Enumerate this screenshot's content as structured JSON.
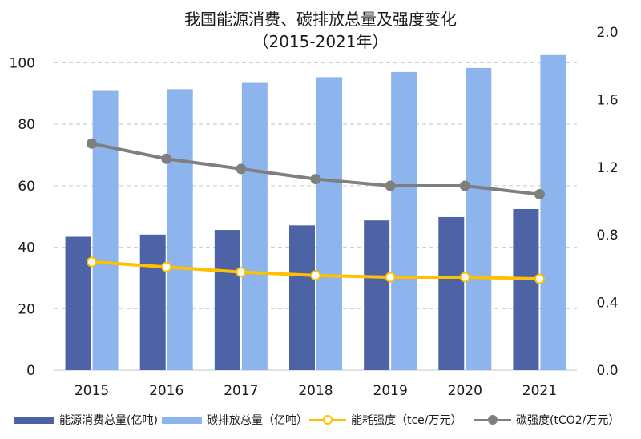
{
  "title": {
    "line1": "我国能源消费、碳排放总量及强度变化",
    "line2": "（2015-2021年）"
  },
  "colors": {
    "energy_total": "#4d63a5",
    "carbon_total": "#8db4ec",
    "energy_intensity": "#ffc000",
    "carbon_intensity": "#7f7f7f",
    "grid": "#d0d0d0"
  },
  "chart_data": {
    "type": "bar",
    "categories": [
      "2015",
      "2016",
      "2017",
      "2018",
      "2019",
      "2020",
      "2021"
    ],
    "y_left": {
      "ticks": [
        "0",
        "20",
        "40",
        "60",
        "80",
        "100"
      ],
      "ylim": [
        0,
        110
      ]
    },
    "y_right": {
      "ticks": [
        "0.0",
        "0.4",
        "0.8",
        "1.2",
        "1.6",
        "2.0"
      ],
      "ylim": [
        0,
        2.0
      ]
    },
    "grid": true,
    "legend_position": "bottom",
    "series": [
      {
        "name": "能源消费总量(亿吨)",
        "kind": "bar",
        "axis": "left",
        "values": [
          43.4,
          44.1,
          45.6,
          47.1,
          48.7,
          49.8,
          52.4
        ]
      },
      {
        "name": "碳排放总量（亿吨）",
        "kind": "bar",
        "axis": "left",
        "values": [
          91.1,
          91.4,
          93.7,
          95.3,
          97.0,
          98.3,
          102.5
        ]
      },
      {
        "name": "能耗强度（tce/万元）",
        "kind": "line",
        "axis": "right",
        "values": [
          0.64,
          0.61,
          0.58,
          0.56,
          0.55,
          0.55,
          0.54
        ]
      },
      {
        "name": "碳强度(tCO2/万元）",
        "kind": "line",
        "axis": "right",
        "values": [
          1.34,
          1.25,
          1.19,
          1.13,
          1.09,
          1.09,
          1.04
        ]
      }
    ]
  }
}
